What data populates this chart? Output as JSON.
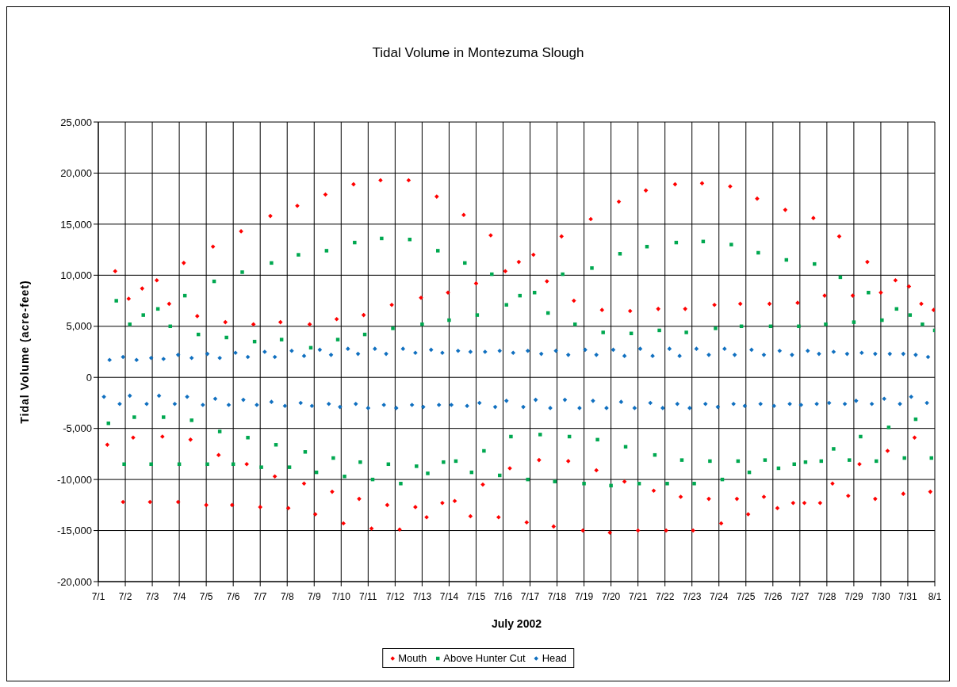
{
  "chart_data": {
    "type": "scatter",
    "title": "Tidal Volume in Montezuma Slough",
    "xlabel": "July 2002",
    "ylabel": "Tidal Volume (acre-feet)",
    "xlim": [
      "2002-07-01",
      "2002-08-01"
    ],
    "xticks": [
      {
        "value": "2002-07-01",
        "label": "7/1"
      },
      {
        "value": "2002-07-02",
        "label": "7/2"
      },
      {
        "value": "2002-07-03",
        "label": "7/3"
      },
      {
        "value": "2002-07-04",
        "label": "7/4"
      },
      {
        "value": "2002-07-05",
        "label": "7/5"
      },
      {
        "value": "2002-07-06",
        "label": "7/6"
      },
      {
        "value": "2002-07-07",
        "label": "7/7"
      },
      {
        "value": "2002-07-08",
        "label": "7/8"
      },
      {
        "value": "2002-07-09",
        "label": "7/9"
      },
      {
        "value": "2002-07-10",
        "label": "7/10"
      },
      {
        "value": "2002-07-11",
        "label": "7/11"
      },
      {
        "value": "2002-07-12",
        "label": "7/12"
      },
      {
        "value": "2002-07-13",
        "label": "7/13"
      },
      {
        "value": "2002-07-14",
        "label": "7/14"
      },
      {
        "value": "2002-07-15",
        "label": "7/15"
      },
      {
        "value": "2002-07-16",
        "label": "7/16"
      },
      {
        "value": "2002-07-17",
        "label": "7/17"
      },
      {
        "value": "2002-07-18",
        "label": "7/18"
      },
      {
        "value": "2002-07-19",
        "label": "7/19"
      },
      {
        "value": "2002-07-20",
        "label": "7/20"
      },
      {
        "value": "2002-07-21",
        "label": "7/21"
      },
      {
        "value": "2002-07-22",
        "label": "7/22"
      },
      {
        "value": "2002-07-23",
        "label": "7/23"
      },
      {
        "value": "2002-07-24",
        "label": "7/24"
      },
      {
        "value": "2002-07-25",
        "label": "7/25"
      },
      {
        "value": "2002-07-26",
        "label": "7/26"
      },
      {
        "value": "2002-07-27",
        "label": "7/27"
      },
      {
        "value": "2002-07-28",
        "label": "7/28"
      },
      {
        "value": "2002-07-29",
        "label": "7/29"
      },
      {
        "value": "2002-07-30",
        "label": "7/30"
      },
      {
        "value": "2002-07-31",
        "label": "7/31"
      },
      {
        "value": "2002-08-01",
        "label": "8/1"
      }
    ],
    "ylim": [
      -20000,
      25000
    ],
    "yticks": [
      {
        "value": -20000,
        "label": "-20,000"
      },
      {
        "value": -15000,
        "label": "-15,000"
      },
      {
        "value": -10000,
        "label": "-10,000"
      },
      {
        "value": -5000,
        "label": "-5,000"
      },
      {
        "value": 0,
        "label": "0"
      },
      {
        "value": 5000,
        "label": "5,000"
      },
      {
        "value": 10000,
        "label": "10,000"
      },
      {
        "value": 15000,
        "label": "15,000"
      },
      {
        "value": 20000,
        "label": "20,000"
      },
      {
        "value": 25000,
        "label": "25,000"
      }
    ],
    "grid": true,
    "legend": "bottom",
    "series": [
      {
        "name": "Mouth",
        "color": "#ff0000",
        "marker": "diamond",
        "x": [
          "2002-07-01T15:00",
          "2002-07-02T03:00",
          "2002-07-02T15:00",
          "2002-07-03T04:00",
          "2002-07-03T15:00",
          "2002-07-04T04:00",
          "2002-07-04T16:00",
          "2002-07-05T06:00",
          "2002-07-05T17:00",
          "2002-07-06T07:00",
          "2002-07-06T18:00",
          "2002-07-07T09:00",
          "2002-07-07T18:00",
          "2002-07-08T09:00",
          "2002-07-08T20:00",
          "2002-07-09T10:00",
          "2002-07-09T20:00",
          "2002-07-10T11:00",
          "2002-07-10T20:00",
          "2002-07-11T11:00",
          "2002-07-11T21:00",
          "2002-07-12T12:00",
          "2002-07-12T23:00",
          "2002-07-13T13:00",
          "2002-07-13T23:00",
          "2002-07-14T13:00",
          "2002-07-15T00:00",
          "2002-07-15T13:00",
          "2002-07-16T02:00",
          "2002-07-16T14:00",
          "2002-07-17T03:00",
          "2002-07-17T15:00",
          "2002-07-18T04:00",
          "2002-07-18T15:00",
          "2002-07-19T06:00",
          "2002-07-19T16:00",
          "2002-07-20T07:00",
          "2002-07-20T17:00",
          "2002-07-21T07:00",
          "2002-07-21T18:00",
          "2002-07-22T09:00",
          "2002-07-22T18:00",
          "2002-07-23T09:00",
          "2002-07-23T20:00",
          "2002-07-24T10:00",
          "2002-07-24T19:00",
          "2002-07-25T10:00",
          "2002-07-25T21:00",
          "2002-07-26T11:00",
          "2002-07-26T22:00",
          "2002-07-27T12:00",
          "2002-07-27T22:00",
          "2002-07-28T11:00",
          "2002-07-28T23:00",
          "2002-07-29T12:00",
          "2002-07-30T00:00",
          "2002-07-30T13:00",
          "2002-07-31T01:00",
          "2002-07-31T12:00",
          "2002-07-31T23:00",
          "2002-07-01T08:00",
          "2002-07-01T22:00",
          "2002-07-02T07:00",
          "2002-07-02T22:00",
          "2002-07-03T09:00",
          "2002-07-03T23:00",
          "2002-07-04T10:00",
          "2002-07-05T00:00",
          "2002-07-05T11:00",
          "2002-07-05T23:00",
          "2002-07-06T12:00",
          "2002-07-07T00:00",
          "2002-07-07T13:00",
          "2002-07-08T01:00",
          "2002-07-08T15:00",
          "2002-07-09T01:00",
          "2002-07-09T16:00",
          "2002-07-10T02:00",
          "2002-07-10T16:00",
          "2002-07-11T03:00",
          "2002-07-11T17:00",
          "2002-07-12T04:00",
          "2002-07-12T18:00",
          "2002-07-13T04:00",
          "2002-07-13T18:00",
          "2002-07-14T05:00",
          "2002-07-14T19:00",
          "2002-07-15T06:00",
          "2002-07-15T20:00",
          "2002-07-16T06:00",
          "2002-07-16T21:00",
          "2002-07-17T08:00",
          "2002-07-17T21:00",
          "2002-07-18T10:00",
          "2002-07-18T23:00",
          "2002-07-19T11:00",
          "2002-07-19T23:00",
          "2002-07-20T12:00",
          "2002-07-21T00:00",
          "2002-07-21T14:00",
          "2002-07-22T01:00",
          "2002-07-22T14:00",
          "2002-07-23T01:00",
          "2002-07-23T15:00",
          "2002-07-24T02:00",
          "2002-07-24T16:00",
          "2002-07-25T02:00",
          "2002-07-25T16:00",
          "2002-07-26T04:00",
          "2002-07-26T18:00",
          "2002-07-27T04:00",
          "2002-07-27T18:00",
          "2002-07-28T05:00",
          "2002-07-28T19:00",
          "2002-07-29T05:00",
          "2002-07-29T19:00",
          "2002-07-30T06:00",
          "2002-07-30T20:00",
          "2002-07-31T06:00",
          "2002-07-31T20:00"
        ],
        "values": [
          10400,
          7700,
          8700,
          9500,
          7200,
          11200,
          6000,
          12800,
          5400,
          14300,
          5200,
          15800,
          5400,
          16800,
          5200,
          17900,
          5700,
          18900,
          6100,
          19300,
          7100,
          19300,
          7800,
          17700,
          8300,
          15900,
          9200,
          13900,
          10400,
          11300,
          12000,
          9400,
          13800,
          7500,
          15500,
          6600,
          17200,
          6500,
          18300,
          6700,
          18900,
          6700,
          19000,
          7100,
          18700,
          7200,
          17500,
          7200,
          16400,
          7300,
          15600,
          8000,
          13800,
          8000,
          11300,
          8300,
          9500,
          8900,
          7200,
          6600,
          -6600,
          -12200,
          -5900,
          -12200,
          -5800,
          -12200,
          -6100,
          -12500,
          -7600,
          -12500,
          -8500,
          -12700,
          -9700,
          -12800,
          -10400,
          -13400,
          -11200,
          -14300,
          -11900,
          -14800,
          -12500,
          -14900,
          -12700,
          -13700,
          -12300,
          -12100,
          -13600,
          -10500,
          -13700,
          -8900,
          -14200,
          -8100,
          -14600,
          -8200,
          -15000,
          -9100,
          -15200,
          -10200,
          -15000,
          -11100,
          -15000,
          -11700,
          -15000,
          -11900,
          -14300,
          -11900,
          -13400,
          -11700,
          -12800,
          -12300,
          -12300,
          -12300,
          -10400,
          -11600,
          -8500,
          -11900,
          -7200,
          -11400,
          -5900,
          -11200
        ]
      },
      {
        "name": "Above Hunter Cut",
        "color": "#00a850",
        "marker": "square",
        "x": [
          "2002-07-01T16:00",
          "2002-07-02T04:00",
          "2002-07-02T16:00",
          "2002-07-03T05:00",
          "2002-07-03T16:00",
          "2002-07-04T05:00",
          "2002-07-04T17:00",
          "2002-07-05T07:00",
          "2002-07-05T18:00",
          "2002-07-06T08:00",
          "2002-07-06T19:00",
          "2002-07-07T10:00",
          "2002-07-07T19:00",
          "2002-07-08T10:00",
          "2002-07-08T21:00",
          "2002-07-09T11:00",
          "2002-07-09T21:00",
          "2002-07-10T12:00",
          "2002-07-10T21:00",
          "2002-07-11T12:00",
          "2002-07-11T22:00",
          "2002-07-12T13:00",
          "2002-07-13T00:00",
          "2002-07-13T14:00",
          "2002-07-14T00:00",
          "2002-07-14T14:00",
          "2002-07-15T01:00",
          "2002-07-15T14:00",
          "2002-07-16T03:00",
          "2002-07-16T15:00",
          "2002-07-17T04:00",
          "2002-07-17T16:00",
          "2002-07-18T05:00",
          "2002-07-18T16:00",
          "2002-07-19T07:00",
          "2002-07-19T17:00",
          "2002-07-20T08:00",
          "2002-07-20T18:00",
          "2002-07-21T08:00",
          "2002-07-21T19:00",
          "2002-07-22T10:00",
          "2002-07-22T19:00",
          "2002-07-23T10:00",
          "2002-07-23T21:00",
          "2002-07-24T11:00",
          "2002-07-24T20:00",
          "2002-07-25T11:00",
          "2002-07-25T22:00",
          "2002-07-26T12:00",
          "2002-07-26T23:00",
          "2002-07-27T13:00",
          "2002-07-27T23:00",
          "2002-07-28T12:00",
          "2002-07-29T00:00",
          "2002-07-29T13:00",
          "2002-07-30T01:00",
          "2002-07-30T14:00",
          "2002-07-31T02:00",
          "2002-07-31T13:00",
          "2002-08-01T00:00",
          "2002-07-01T09:00",
          "2002-07-01T23:00",
          "2002-07-02T08:00",
          "2002-07-02T23:00",
          "2002-07-03T10:00",
          "2002-07-04T00:00",
          "2002-07-04T11:00",
          "2002-07-05T01:00",
          "2002-07-05T12:00",
          "2002-07-06T00:00",
          "2002-07-06T13:00",
          "2002-07-07T01:00",
          "2002-07-07T14:00",
          "2002-07-08T02:00",
          "2002-07-08T16:00",
          "2002-07-09T02:00",
          "2002-07-09T17:00",
          "2002-07-10T03:00",
          "2002-07-10T17:00",
          "2002-07-11T04:00",
          "2002-07-11T18:00",
          "2002-07-12T05:00",
          "2002-07-12T19:00",
          "2002-07-13T05:00",
          "2002-07-13T19:00",
          "2002-07-14T06:00",
          "2002-07-14T20:00",
          "2002-07-15T07:00",
          "2002-07-15T21:00",
          "2002-07-16T07:00",
          "2002-07-16T22:00",
          "2002-07-17T09:00",
          "2002-07-17T22:00",
          "2002-07-18T11:00",
          "2002-07-19T00:00",
          "2002-07-19T12:00",
          "2002-07-20T00:00",
          "2002-07-20T13:00",
          "2002-07-21T01:00",
          "2002-07-21T15:00",
          "2002-07-22T02:00",
          "2002-07-22T15:00",
          "2002-07-23T02:00",
          "2002-07-23T16:00",
          "2002-07-24T03:00",
          "2002-07-24T17:00",
          "2002-07-25T03:00",
          "2002-07-25T17:00",
          "2002-07-26T05:00",
          "2002-07-26T19:00",
          "2002-07-27T05:00",
          "2002-07-27T19:00",
          "2002-07-28T06:00",
          "2002-07-28T20:00",
          "2002-07-29T06:00",
          "2002-07-29T20:00",
          "2002-07-30T07:00",
          "2002-07-30T21:00",
          "2002-07-31T07:00",
          "2002-07-31T21:00"
        ],
        "values": [
          7500,
          5200,
          6100,
          6700,
          5000,
          8000,
          4200,
          9400,
          3900,
          10300,
          3500,
          11200,
          3700,
          12000,
          2900,
          12400,
          3700,
          13200,
          4200,
          13600,
          4800,
          13500,
          5200,
          12400,
          5600,
          11200,
          6100,
          10100,
          7100,
          8000,
          8300,
          6300,
          10100,
          5200,
          10700,
          4400,
          12100,
          4300,
          12800,
          4600,
          13200,
          4400,
          13300,
          4800,
          13000,
          5000,
          12200,
          5000,
          11500,
          5000,
          11100,
          5200,
          9800,
          5400,
          8300,
          5600,
          6700,
          6100,
          5200,
          4600,
          -4500,
          -8500,
          -3900,
          -8500,
          -3900,
          -8500,
          -4200,
          -8500,
          -5300,
          -8500,
          -5900,
          -8800,
          -6600,
          -8800,
          -7300,
          -9300,
          -7900,
          -9700,
          -8300,
          -10000,
          -8500,
          -10400,
          -8700,
          -9400,
          -8300,
          -8200,
          -9300,
          -7200,
          -9600,
          -5800,
          -10000,
          -5600,
          -10200,
          -5800,
          -10400,
          -6100,
          -10600,
          -6800,
          -10400,
          -7600,
          -10400,
          -8100,
          -10400,
          -8200,
          -10000,
          -8200,
          -9300,
          -8100,
          -8900,
          -8500,
          -8300,
          -8200,
          -7000,
          -8100,
          -5800,
          -8200,
          -4900,
          -7900,
          -4100,
          -7900
        ]
      },
      {
        "name": "Head",
        "color": "#1070c0",
        "marker": "diamond",
        "x": [
          "2002-07-01T10:00",
          "2002-07-01T22:00",
          "2002-07-02T10:00",
          "2002-07-02T23:00",
          "2002-07-03T10:00",
          "2002-07-03T23:00",
          "2002-07-04T11:00",
          "2002-07-05T01:00",
          "2002-07-05T12:00",
          "2002-07-06T02:00",
          "2002-07-06T13:00",
          "2002-07-07T04:00",
          "2002-07-07T13:00",
          "2002-07-08T04:00",
          "2002-07-08T15:00",
          "2002-07-09T05:00",
          "2002-07-09T15:00",
          "2002-07-10T06:00",
          "2002-07-10T15:00",
          "2002-07-11T06:00",
          "2002-07-11T16:00",
          "2002-07-12T07:00",
          "2002-07-12T18:00",
          "2002-07-13T08:00",
          "2002-07-13T18:00",
          "2002-07-14T08:00",
          "2002-07-14T19:00",
          "2002-07-15T08:00",
          "2002-07-15T21:00",
          "2002-07-16T09:00",
          "2002-07-16T22:00",
          "2002-07-17T10:00",
          "2002-07-17T23:00",
          "2002-07-18T10:00",
          "2002-07-19T01:00",
          "2002-07-19T11:00",
          "2002-07-20T02:00",
          "2002-07-20T12:00",
          "2002-07-21T02:00",
          "2002-07-21T13:00",
          "2002-07-22T04:00",
          "2002-07-22T13:00",
          "2002-07-23T04:00",
          "2002-07-23T15:00",
          "2002-07-24T05:00",
          "2002-07-24T14:00",
          "2002-07-25T05:00",
          "2002-07-25T16:00",
          "2002-07-26T06:00",
          "2002-07-26T17:00",
          "2002-07-27T07:00",
          "2002-07-27T17:00",
          "2002-07-28T06:00",
          "2002-07-28T18:00",
          "2002-07-29T07:00",
          "2002-07-29T19:00",
          "2002-07-30T08:00",
          "2002-07-30T20:00",
          "2002-07-31T07:00",
          "2002-07-31T18:00",
          "2002-07-01T05:00",
          "2002-07-01T19:00",
          "2002-07-02T04:00",
          "2002-07-02T19:00",
          "2002-07-03T06:00",
          "2002-07-03T20:00",
          "2002-07-04T07:00",
          "2002-07-04T21:00",
          "2002-07-05T08:00",
          "2002-07-05T20:00",
          "2002-07-06T09:00",
          "2002-07-06T21:00",
          "2002-07-07T10:00",
          "2002-07-07T22:00",
          "2002-07-08T12:00",
          "2002-07-08T22:00",
          "2002-07-09T13:00",
          "2002-07-09T23:00",
          "2002-07-10T13:00",
          "2002-07-11T00:00",
          "2002-07-11T14:00",
          "2002-07-12T01:00",
          "2002-07-12T15:00",
          "2002-07-13T01:00",
          "2002-07-13T15:00",
          "2002-07-14T02:00",
          "2002-07-14T16:00",
          "2002-07-15T03:00",
          "2002-07-15T17:00",
          "2002-07-16T03:00",
          "2002-07-16T18:00",
          "2002-07-17T05:00",
          "2002-07-17T18:00",
          "2002-07-18T07:00",
          "2002-07-18T20:00",
          "2002-07-19T08:00",
          "2002-07-19T20:00",
          "2002-07-20T09:00",
          "2002-07-20T21:00",
          "2002-07-21T11:00",
          "2002-07-21T22:00",
          "2002-07-22T11:00",
          "2002-07-22T22:00",
          "2002-07-23T12:00",
          "2002-07-23T23:00",
          "2002-07-24T13:00",
          "2002-07-24T23:00",
          "2002-07-25T13:00",
          "2002-07-26T01:00",
          "2002-07-26T15:00",
          "2002-07-27T01:00",
          "2002-07-27T15:00",
          "2002-07-28T02:00",
          "2002-07-28T16:00",
          "2002-07-29T02:00",
          "2002-07-29T16:00",
          "2002-07-30T03:00",
          "2002-07-30T17:00",
          "2002-07-31T03:00",
          "2002-07-31T17:00"
        ],
        "values": [
          1700,
          2000,
          1700,
          1900,
          1800,
          2200,
          1900,
          2300,
          1900,
          2400,
          2000,
          2500,
          2000,
          2600,
          2100,
          2700,
          2200,
          2800,
          2300,
          2800,
          2300,
          2800,
          2400,
          2700,
          2400,
          2600,
          2500,
          2500,
          2600,
          2400,
          2600,
          2300,
          2600,
          2200,
          2700,
          2200,
          2700,
          2100,
          2800,
          2100,
          2800,
          2100,
          2800,
          2200,
          2800,
          2200,
          2700,
          2200,
          2600,
          2200,
          2600,
          2300,
          2500,
          2300,
          2400,
          2300,
          2300,
          2300,
          2200,
          2000,
          -1900,
          -2600,
          -1800,
          -2600,
          -1800,
          -2600,
          -1900,
          -2700,
          -2100,
          -2700,
          -2200,
          -2700,
          -2400,
          -2800,
          -2500,
          -2800,
          -2600,
          -2900,
          -2600,
          -3000,
          -2700,
          -3000,
          -2700,
          -2900,
          -2700,
          -2700,
          -2800,
          -2500,
          -2900,
          -2300,
          -2900,
          -2200,
          -3000,
          -2200,
          -3000,
          -2300,
          -3000,
          -2400,
          -3000,
          -2500,
          -3000,
          -2600,
          -3000,
          -2600,
          -2900,
          -2600,
          -2800,
          -2600,
          -2800,
          -2600,
          -2700,
          -2600,
          -2500,
          -2600,
          -2300,
          -2600,
          -2100,
          -2600,
          -1900,
          -2500
        ]
      }
    ]
  }
}
